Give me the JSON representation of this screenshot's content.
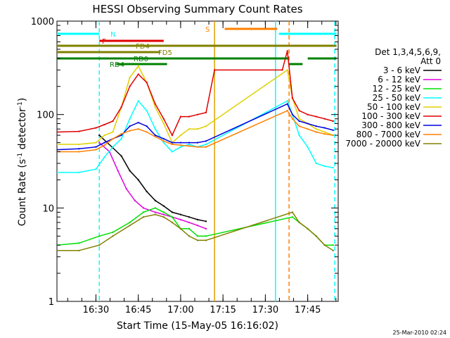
{
  "chart_data": {
    "type": "line",
    "title": "HESSI Observing Summary Count Rates",
    "xlabel": "Start Time (15-May-05 16:16:02)",
    "ylabel_main": "Count Rate (s",
    "ylabel_sup1": "-1",
    "ylabel_mid": " detector",
    "ylabel_sup2": "-1",
    "ylabel_end": ")",
    "ylog": true,
    "ylim": [
      1,
      1000
    ],
    "xlim_minutes": [
      16.27,
      17.93
    ],
    "x_ticks": [
      "16:30",
      "16:45",
      "17:00",
      "17:15",
      "17:30",
      "17:45"
    ],
    "x_tick_hours": [
      16.5,
      16.75,
      17.0,
      17.25,
      17.5,
      17.75
    ],
    "y_ticks": [
      "1",
      "10",
      "100",
      "1000"
    ],
    "y_tick_values": [
      1,
      10,
      100,
      1000
    ],
    "legend_header_1": "Det 1,3,4,5,6,9,",
    "legend_header_2": "Att 0",
    "legend": [
      {
        "label": "3 - 6 keV",
        "color": "#000000"
      },
      {
        "label": "6 - 12 keV",
        "color": "#e000e0"
      },
      {
        "label": "12 - 25 keV",
        "color": "#00e000"
      },
      {
        "label": "25 - 50 keV",
        "color": "#00ffff"
      },
      {
        "label": "50 - 100 keV",
        "color": "#e0d000"
      },
      {
        "label": "100 - 300 keV",
        "color": "#e00000"
      },
      {
        "label": "300 - 800 keV",
        "color": "#0000e0"
      },
      {
        "label": "800 - 7000 keV",
        "color": "#ff8000"
      },
      {
        "label": "7000 - 20000 keV",
        "color": "#808000"
      }
    ],
    "flag_bars": [
      {
        "label": "N",
        "color": "#00ffff",
        "segments": [
          [
            16.27,
            16.52
          ],
          [
            17.58,
            17.92
          ]
        ]
      },
      {
        "label": "S",
        "color": "#ff8000",
        "segments": [
          [
            17.26,
            17.57
          ]
        ]
      },
      {
        "label": "F",
        "color": "#e00000",
        "segments": [
          [
            16.52,
            16.9
          ]
        ]
      },
      {
        "label": "FD4",
        "color": "#808000",
        "segments": [
          [
            16.27,
            17.92
          ]
        ]
      },
      {
        "label": "FD5",
        "color": "#808000",
        "segments": [
          [
            16.27,
            16.88
          ]
        ]
      },
      {
        "label": "RD0",
        "color": "#008000",
        "segments": [
          [
            16.27,
            17.64
          ],
          [
            17.75,
            17.92
          ]
        ]
      },
      {
        "label": "RD4",
        "color": "#008000",
        "segments": [
          [
            16.62,
            16.92
          ],
          [
            17.64,
            17.72
          ]
        ]
      }
    ],
    "vlines": [
      {
        "x": 16.52,
        "color": "#00ffff",
        "style": "dashed"
      },
      {
        "x": 17.2,
        "color": "#e0a000",
        "style": "solid"
      },
      {
        "x": 17.56,
        "color": "#00ffff",
        "style": "solid"
      },
      {
        "x": 17.64,
        "color": "#ff8000",
        "style": "dashed"
      },
      {
        "x": 17.91,
        "color": "#00ffff",
        "style": "dashed"
      }
    ],
    "series": [
      {
        "name": "3 - 6 keV",
        "color": "#000000",
        "points": [
          [
            16.52,
            60
          ],
          [
            16.6,
            44
          ],
          [
            16.65,
            36
          ],
          [
            16.7,
            25
          ],
          [
            16.75,
            20
          ],
          [
            16.8,
            15
          ],
          [
            16.85,
            12
          ],
          [
            16.9,
            10.5
          ],
          [
            16.95,
            9
          ],
          [
            17.0,
            8.5
          ],
          [
            17.05,
            8
          ],
          [
            17.1,
            7.5
          ],
          [
            17.15,
            7.2
          ]
        ]
      },
      {
        "name": "6 - 12 keV",
        "color": "#e000e0",
        "points": [
          [
            16.52,
            50
          ],
          [
            16.58,
            40
          ],
          [
            16.63,
            25
          ],
          [
            16.68,
            16
          ],
          [
            16.73,
            12
          ],
          [
            16.78,
            10
          ],
          [
            16.85,
            9
          ],
          [
            16.9,
            8.5
          ],
          [
            16.95,
            8
          ],
          [
            17.0,
            7.5
          ],
          [
            17.05,
            7
          ],
          [
            17.1,
            6.5
          ],
          [
            17.15,
            6
          ]
        ]
      },
      {
        "name": "12 - 25 keV",
        "color": "#00e000",
        "points": [
          [
            16.27,
            4
          ],
          [
            16.4,
            4.2
          ],
          [
            16.52,
            5
          ],
          [
            16.6,
            5.5
          ],
          [
            16.7,
            7
          ],
          [
            16.78,
            9
          ],
          [
            16.85,
            10
          ],
          [
            16.9,
            9
          ],
          [
            16.95,
            8
          ],
          [
            17.0,
            6
          ],
          [
            17.05,
            6
          ],
          [
            17.1,
            5
          ],
          [
            17.15,
            5
          ],
          [
            17.66,
            8
          ],
          [
            17.7,
            7
          ],
          [
            17.75,
            6
          ],
          [
            17.8,
            5
          ],
          [
            17.85,
            4
          ],
          [
            17.9,
            4
          ]
        ]
      },
      {
        "name": "25 - 50 keV",
        "color": "#00ffff",
        "points": [
          [
            16.27,
            24
          ],
          [
            16.4,
            24
          ],
          [
            16.5,
            26
          ],
          [
            16.55,
            35
          ],
          [
            16.6,
            45
          ],
          [
            16.65,
            55
          ],
          [
            16.7,
            90
          ],
          [
            16.75,
            140
          ],
          [
            16.8,
            110
          ],
          [
            16.85,
            70
          ],
          [
            16.9,
            50
          ],
          [
            16.95,
            40
          ],
          [
            17.0,
            45
          ],
          [
            17.05,
            48
          ],
          [
            17.1,
            45
          ],
          [
            17.15,
            48
          ],
          [
            17.63,
            140
          ],
          [
            17.66,
            100
          ],
          [
            17.7,
            60
          ],
          [
            17.75,
            45
          ],
          [
            17.8,
            30
          ],
          [
            17.85,
            28
          ],
          [
            17.9,
            27
          ]
        ]
      },
      {
        "name": "50 - 100 keV",
        "color": "#e0d000",
        "points": [
          [
            16.27,
            48
          ],
          [
            16.4,
            48
          ],
          [
            16.5,
            50
          ],
          [
            16.55,
            60
          ],
          [
            16.6,
            65
          ],
          [
            16.65,
            120
          ],
          [
            16.7,
            250
          ],
          [
            16.75,
            330
          ],
          [
            16.8,
            220
          ],
          [
            16.85,
            120
          ],
          [
            16.9,
            80
          ],
          [
            16.95,
            50
          ],
          [
            17.0,
            60
          ],
          [
            17.05,
            70
          ],
          [
            17.1,
            70
          ],
          [
            17.15,
            75
          ],
          [
            17.63,
            300
          ],
          [
            17.66,
            150
          ],
          [
            17.7,
            90
          ],
          [
            17.75,
            80
          ],
          [
            17.8,
            70
          ],
          [
            17.85,
            65
          ],
          [
            17.9,
            60
          ]
        ]
      },
      {
        "name": "100 - 300 keV",
        "color": "#e00000",
        "points": [
          [
            16.27,
            65
          ],
          [
            16.4,
            66
          ],
          [
            16.5,
            72
          ],
          [
            16.55,
            78
          ],
          [
            16.6,
            85
          ],
          [
            16.65,
            120
          ],
          [
            16.7,
            200
          ],
          [
            16.75,
            270
          ],
          [
            16.8,
            220
          ],
          [
            16.85,
            130
          ],
          [
            16.9,
            90
          ],
          [
            16.95,
            60
          ],
          [
            17.0,
            95
          ],
          [
            17.05,
            95
          ],
          [
            17.1,
            100
          ],
          [
            17.15,
            105
          ],
          [
            17.2,
            300
          ],
          [
            17.6,
            300
          ],
          [
            17.63,
            480
          ],
          [
            17.66,
            150
          ],
          [
            17.7,
            110
          ],
          [
            17.75,
            100
          ],
          [
            17.8,
            95
          ],
          [
            17.85,
            90
          ],
          [
            17.9,
            85
          ]
        ]
      },
      {
        "name": "300 - 800 keV",
        "color": "#0000e0",
        "points": [
          [
            16.27,
            42
          ],
          [
            16.4,
            43
          ],
          [
            16.5,
            45
          ],
          [
            16.55,
            50
          ],
          [
            16.6,
            55
          ],
          [
            16.65,
            60
          ],
          [
            16.7,
            75
          ],
          [
            16.75,
            82
          ],
          [
            16.8,
            75
          ],
          [
            16.85,
            60
          ],
          [
            16.9,
            55
          ],
          [
            16.95,
            50
          ],
          [
            17.0,
            50
          ],
          [
            17.05,
            50
          ],
          [
            17.1,
            50
          ],
          [
            17.15,
            52
          ],
          [
            17.63,
            130
          ],
          [
            17.66,
            100
          ],
          [
            17.7,
            85
          ],
          [
            17.75,
            80
          ],
          [
            17.8,
            75
          ],
          [
            17.85,
            72
          ],
          [
            17.9,
            68
          ]
        ]
      },
      {
        "name": "800 - 7000 keV",
        "color": "#ff8000",
        "points": [
          [
            16.27,
            40
          ],
          [
            16.4,
            40
          ],
          [
            16.5,
            42
          ],
          [
            16.55,
            47
          ],
          [
            16.6,
            55
          ],
          [
            16.65,
            62
          ],
          [
            16.7,
            67
          ],
          [
            16.75,
            70
          ],
          [
            16.8,
            65
          ],
          [
            16.85,
            58
          ],
          [
            16.9,
            52
          ],
          [
            16.95,
            48
          ],
          [
            17.0,
            47
          ],
          [
            17.05,
            46
          ],
          [
            17.1,
            45
          ],
          [
            17.15,
            45
          ],
          [
            17.63,
            110
          ],
          [
            17.66,
            90
          ],
          [
            17.7,
            75
          ],
          [
            17.75,
            70
          ],
          [
            17.8,
            65
          ],
          [
            17.85,
            62
          ],
          [
            17.9,
            60
          ]
        ]
      },
      {
        "name": "7000 - 20000 keV",
        "color": "#808000",
        "points": [
          [
            16.27,
            3.5
          ],
          [
            16.4,
            3.5
          ],
          [
            16.52,
            4
          ],
          [
            16.6,
            5
          ],
          [
            16.7,
            6.5
          ],
          [
            16.78,
            8
          ],
          [
            16.85,
            8.5
          ],
          [
            16.9,
            8
          ],
          [
            16.95,
            7
          ],
          [
            17.0,
            6
          ],
          [
            17.05,
            5
          ],
          [
            17.1,
            4.5
          ],
          [
            17.15,
            4.5
          ],
          [
            17.66,
            9
          ],
          [
            17.7,
            7
          ],
          [
            17.75,
            6
          ],
          [
            17.8,
            5
          ],
          [
            17.85,
            4
          ],
          [
            17.9,
            3.5
          ]
        ]
      }
    ]
  },
  "footer": {
    "timestamp": "25-Mar-2010 02:24"
  }
}
